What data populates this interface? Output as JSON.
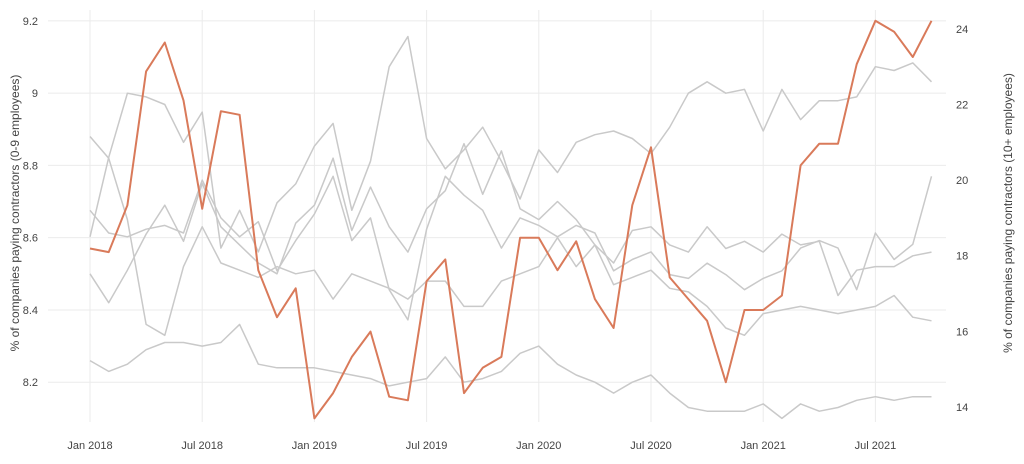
{
  "chart_data": {
    "type": "line",
    "title": "",
    "x": [
      "2018-01",
      "2018-02",
      "2018-03",
      "2018-04",
      "2018-05",
      "2018-06",
      "2018-07",
      "2018-08",
      "2018-09",
      "2018-10",
      "2018-11",
      "2018-12",
      "2019-01",
      "2019-02",
      "2019-03",
      "2019-04",
      "2019-05",
      "2019-06",
      "2019-07",
      "2019-08",
      "2019-09",
      "2019-10",
      "2019-11",
      "2019-12",
      "2020-01",
      "2020-02",
      "2020-03",
      "2020-04",
      "2020-05",
      "2020-06",
      "2020-07",
      "2020-08",
      "2020-09",
      "2020-10",
      "2020-11",
      "2020-12",
      "2021-01",
      "2021-02",
      "2021-03",
      "2021-04",
      "2021-05",
      "2021-06",
      "2021-07",
      "2021-08",
      "2021-09",
      "2021-10"
    ],
    "x_tick_labels": [
      "Jan 2018",
      "Jul 2018",
      "Jan 2019",
      "Jul 2019",
      "Jan 2020",
      "Jul 2020",
      "Jan 2021",
      "Jul 2021"
    ],
    "x_tick_values": [
      "2018-01",
      "2018-07",
      "2019-01",
      "2019-07",
      "2020-01",
      "2020-07",
      "2021-01",
      "2021-07"
    ],
    "ylabel_left": "% of companies paying contractors (0-9 employees)",
    "ylabel_right": "% of companies paying contractors (10+ employees)",
    "ylim_left": [
      8.09,
      9.23
    ],
    "ylim_right": [
      13.6,
      24.5
    ],
    "yticks_left": [
      8.2,
      8.4,
      8.6,
      8.8,
      9,
      9.2
    ],
    "yticks_left_labels": [
      "8.2",
      "8.4",
      "8.6",
      "8.8",
      "9",
      "9.2"
    ],
    "yticks_right": [
      14,
      16,
      18,
      20,
      22,
      24
    ],
    "yticks_right_labels": [
      "14",
      "16",
      "18",
      "20",
      "22",
      "24"
    ],
    "grid": true,
    "legend": "none",
    "highlight_color": "#d97a5a",
    "background_color": "#c9c9c9",
    "series": [
      {
        "axis": "left",
        "highlight": true,
        "values": [
          8.57,
          8.56,
          8.69,
          9.06,
          9.14,
          8.98,
          8.68,
          8.95,
          8.94,
          8.51,
          8.38,
          8.46,
          8.1,
          8.17,
          8.27,
          8.34,
          8.16,
          8.15,
          8.48,
          8.54,
          8.17,
          8.24,
          8.27,
          8.6,
          8.6,
          8.51,
          8.59,
          8.43,
          8.35,
          8.69,
          8.85,
          8.49,
          8.43,
          8.37,
          8.2,
          8.4,
          8.4,
          8.44,
          8.8,
          8.86,
          8.86,
          9.08,
          9.2,
          9.17,
          9.1,
          9.2
        ]
      },
      {
        "axis": "left",
        "values": [
          8.88,
          8.82,
          8.65,
          8.36,
          8.33,
          8.52,
          8.63,
          8.53,
          8.51,
          8.49,
          8.52,
          8.5,
          8.51,
          8.43,
          8.5,
          8.48,
          8.46,
          8.43,
          8.48,
          8.48,
          8.41,
          8.41,
          8.48,
          8.5,
          8.52,
          8.6,
          8.52,
          8.58,
          8.47,
          8.49,
          8.51,
          8.46,
          8.45,
          8.41,
          8.35,
          8.33,
          8.39,
          8.4,
          8.41,
          8.4,
          8.39,
          8.4,
          8.41,
          8.44,
          8.38,
          8.37
        ]
      },
      {
        "axis": "left",
        "values": [
          8.26,
          8.23,
          8.25,
          8.29,
          8.31,
          8.31,
          8.3,
          8.31,
          8.36,
          8.25,
          8.24,
          8.24,
          8.24,
          8.23,
          8.22,
          8.21,
          8.19,
          8.2,
          8.21,
          8.27,
          8.2,
          8.21,
          8.23,
          8.28,
          8.3,
          8.25,
          8.22,
          8.2,
          8.17,
          8.2,
          8.22,
          8.17,
          8.13,
          8.12,
          8.12,
          8.12,
          8.14,
          8.1,
          8.14,
          8.12,
          8.13,
          8.15,
          8.16,
          8.15,
          8.16,
          8.16
        ]
      },
      {
        "axis": "left",
        "values": [
          8.5,
          8.42,
          8.51,
          8.61,
          8.69,
          8.59,
          8.75,
          8.63,
          8.58,
          8.53,
          8.5,
          8.64,
          8.69,
          8.82,
          8.62,
          8.74,
          8.63,
          8.56,
          8.68,
          8.73,
          8.86,
          8.72,
          8.84,
          8.68,
          8.65,
          8.7,
          8.65,
          8.58,
          8.53,
          8.62,
          8.63,
          8.58,
          8.56,
          8.63,
          8.57,
          8.59,
          8.56,
          8.61,
          8.58,
          8.59,
          8.44,
          8.51,
          8.52,
          8.52,
          8.55,
          8.56
        ]
      }
    ],
    "background_series_right": [
      {
        "axis": "right",
        "values": [
          18.5,
          20.6,
          22.3,
          22.2,
          22.0,
          21.0,
          21.8,
          18.2,
          19.2,
          18.1,
          19.4,
          19.9,
          20.9,
          21.5,
          19.2,
          20.5,
          23.0,
          23.8,
          21.1,
          20.3,
          20.8,
          21.4,
          20.5,
          19.5,
          20.8,
          20.2,
          21.0,
          21.2,
          21.3,
          21.1,
          20.7,
          21.4,
          22.3,
          22.6,
          22.3,
          22.4,
          21.3,
          22.4,
          21.6,
          22.1,
          22.1,
          22.2,
          23.0,
          22.9,
          23.1,
          22.6
        ]
      },
      {
        "axis": "right",
        "values": [
          19.2,
          18.6,
          18.5,
          18.7,
          18.8,
          18.6,
          20.0,
          19.0,
          18.5,
          18.9,
          17.6,
          18.4,
          19.1,
          20.1,
          18.4,
          19.0,
          17.1,
          16.3,
          18.7,
          20.1,
          19.6,
          19.2,
          18.2,
          19.0,
          18.8,
          18.5,
          18.8,
          18.6,
          17.6,
          17.9,
          18.1,
          17.5,
          17.4,
          17.8,
          17.5,
          17.1,
          17.4,
          17.6,
          18.2,
          18.4,
          18.2,
          17.1,
          18.6,
          17.9,
          18.3,
          20.1
        ]
      }
    ]
  }
}
